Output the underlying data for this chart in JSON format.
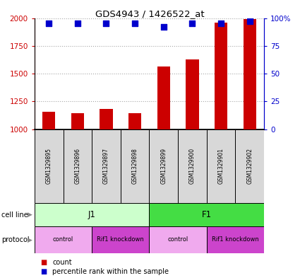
{
  "title": "GDS4943 / 1426522_at",
  "samples": [
    "GSM1329895",
    "GSM1329896",
    "GSM1329897",
    "GSM1329898",
    "GSM1329899",
    "GSM1329900",
    "GSM1329901",
    "GSM1329902"
  ],
  "counts": [
    1155,
    1145,
    1180,
    1145,
    1565,
    1625,
    1960,
    1990
  ],
  "percentiles": [
    95,
    95,
    95,
    95,
    92,
    95,
    95,
    97
  ],
  "ylim": [
    1000,
    2000
  ],
  "yticks": [
    1000,
    1250,
    1500,
    1750,
    2000
  ],
  "ytick_labels": [
    "1000",
    "1250",
    "1500",
    "1750",
    "2000"
  ],
  "y2ticks": [
    0,
    25,
    50,
    75,
    100
  ],
  "y2tick_labels": [
    "0",
    "25",
    "50",
    "75",
    "100%"
  ],
  "bar_color": "#cc0000",
  "dot_color": "#0000cc",
  "bar_width": 0.45,
  "dot_size": 40,
  "axis_color_left": "#cc0000",
  "axis_color_right": "#0000cc",
  "sample_box_color": "#d8d8d8",
  "protocol_groups": [
    {
      "label": "control",
      "start": 0,
      "end": 2,
      "color": "#f0aaee"
    },
    {
      "label": "Rif1 knockdown",
      "start": 2,
      "end": 4,
      "color": "#cc44cc"
    },
    {
      "label": "control",
      "start": 4,
      "end": 6,
      "color": "#f0aaee"
    },
    {
      "label": "Rif1 knockdown",
      "start": 6,
      "end": 8,
      "color": "#cc44cc"
    }
  ],
  "cell_line_groups": [
    {
      "label": "J1",
      "start": 0,
      "end": 4,
      "color": "#ccffcc"
    },
    {
      "label": "F1",
      "start": 4,
      "end": 8,
      "color": "#44dd44"
    }
  ],
  "legend_count_color": "#cc0000",
  "legend_pct_color": "#0000cc"
}
